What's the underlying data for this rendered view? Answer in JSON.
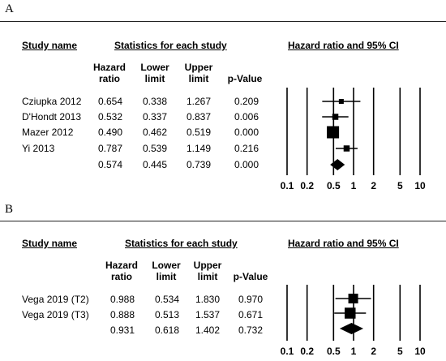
{
  "panels": [
    {
      "letter": "A",
      "headers": {
        "study": "Study name",
        "stats": "Statistics for each study",
        "plot": "Hazard ratio and 95% CI",
        "hr": [
          "Hazard",
          "ratio"
        ],
        "lower": [
          "Lower",
          "limit"
        ],
        "upper": [
          "Upper",
          "limit"
        ],
        "p": "p-Value"
      },
      "rows": [
        {
          "study": "Cziupka 2012",
          "hr": "0.654",
          "lower": "0.338",
          "upper": "1.267",
          "p": "0.209"
        },
        {
          "study": "D'Hondt 2013",
          "hr": "0.532",
          "lower": "0.337",
          "upper": "0.837",
          "p": "0.006"
        },
        {
          "study": "Mazer 2012",
          "hr": "0.490",
          "lower": "0.462",
          "upper": "0.519",
          "p": "0.000"
        },
        {
          "study": "Yi 2013",
          "hr": "0.787",
          "lower": "0.539",
          "upper": "1.149",
          "p": "0.216"
        },
        {
          "study": "",
          "hr": "0.574",
          "lower": "0.445",
          "upper": "0.739",
          "p": "0.000"
        }
      ],
      "ticks": [
        "0.1",
        "0.2",
        "0.5",
        "1",
        "2",
        "5",
        "10"
      ]
    },
    {
      "letter": "B",
      "headers": {
        "study": "Study name",
        "stats": "Statistics for each study",
        "plot": "Hazard ratio and 95% CI",
        "hr": [
          "Hazard",
          "ratio"
        ],
        "lower": [
          "Lower",
          "limit"
        ],
        "upper": [
          "Upper",
          "limit"
        ],
        "p": "p-Value"
      },
      "rows": [
        {
          "study": "Vega 2019 (T2)",
          "hr": "0.988",
          "lower": "0.534",
          "upper": "1.830",
          "p": "0.970"
        },
        {
          "study": "Vega 2019 (T3)",
          "hr": "0.888",
          "lower": "0.513",
          "upper": "1.537",
          "p": "0.671"
        },
        {
          "study": "",
          "hr": "0.931",
          "lower": "0.618",
          "upper": "1.402",
          "p": "0.732"
        }
      ],
      "ticks": [
        "0.1",
        "0.2",
        "0.5",
        "1",
        "2",
        "5",
        "10"
      ]
    }
  ],
  "chart_data": [
    {
      "type": "forest",
      "title": "Hazard ratio and 95% CI",
      "x_scale": "log",
      "xlim": [
        0.1,
        10
      ],
      "x_ticks": [
        0.1,
        0.2,
        0.5,
        1,
        2,
        5,
        10
      ],
      "studies": [
        {
          "name": "Cziupka 2012",
          "hr": 0.654,
          "lower": 0.338,
          "upper": 1.267,
          "weight": 0.4
        },
        {
          "name": "D'Hondt 2013",
          "hr": 0.532,
          "lower": 0.337,
          "upper": 0.837,
          "weight": 0.5
        },
        {
          "name": "Mazer 2012",
          "hr": 0.49,
          "lower": 0.462,
          "upper": 0.519,
          "weight": 1.0
        },
        {
          "name": "Yi 2013",
          "hr": 0.787,
          "lower": 0.539,
          "upper": 1.149,
          "weight": 0.5
        }
      ],
      "summary": {
        "hr": 0.574,
        "lower": 0.445,
        "upper": 0.739
      }
    },
    {
      "type": "forest",
      "title": "Hazard ratio and 95% CI",
      "x_scale": "log",
      "xlim": [
        0.1,
        10
      ],
      "x_ticks": [
        0.1,
        0.2,
        0.5,
        1,
        2,
        5,
        10
      ],
      "studies": [
        {
          "name": "Vega 2019 (T2)",
          "hr": 0.988,
          "lower": 0.534,
          "upper": 1.83,
          "weight": 0.8
        },
        {
          "name": "Vega 2019 (T3)",
          "hr": 0.888,
          "lower": 0.513,
          "upper": 1.537,
          "weight": 0.9
        }
      ],
      "summary": {
        "hr": 0.931,
        "lower": 0.618,
        "upper": 1.402
      }
    }
  ]
}
